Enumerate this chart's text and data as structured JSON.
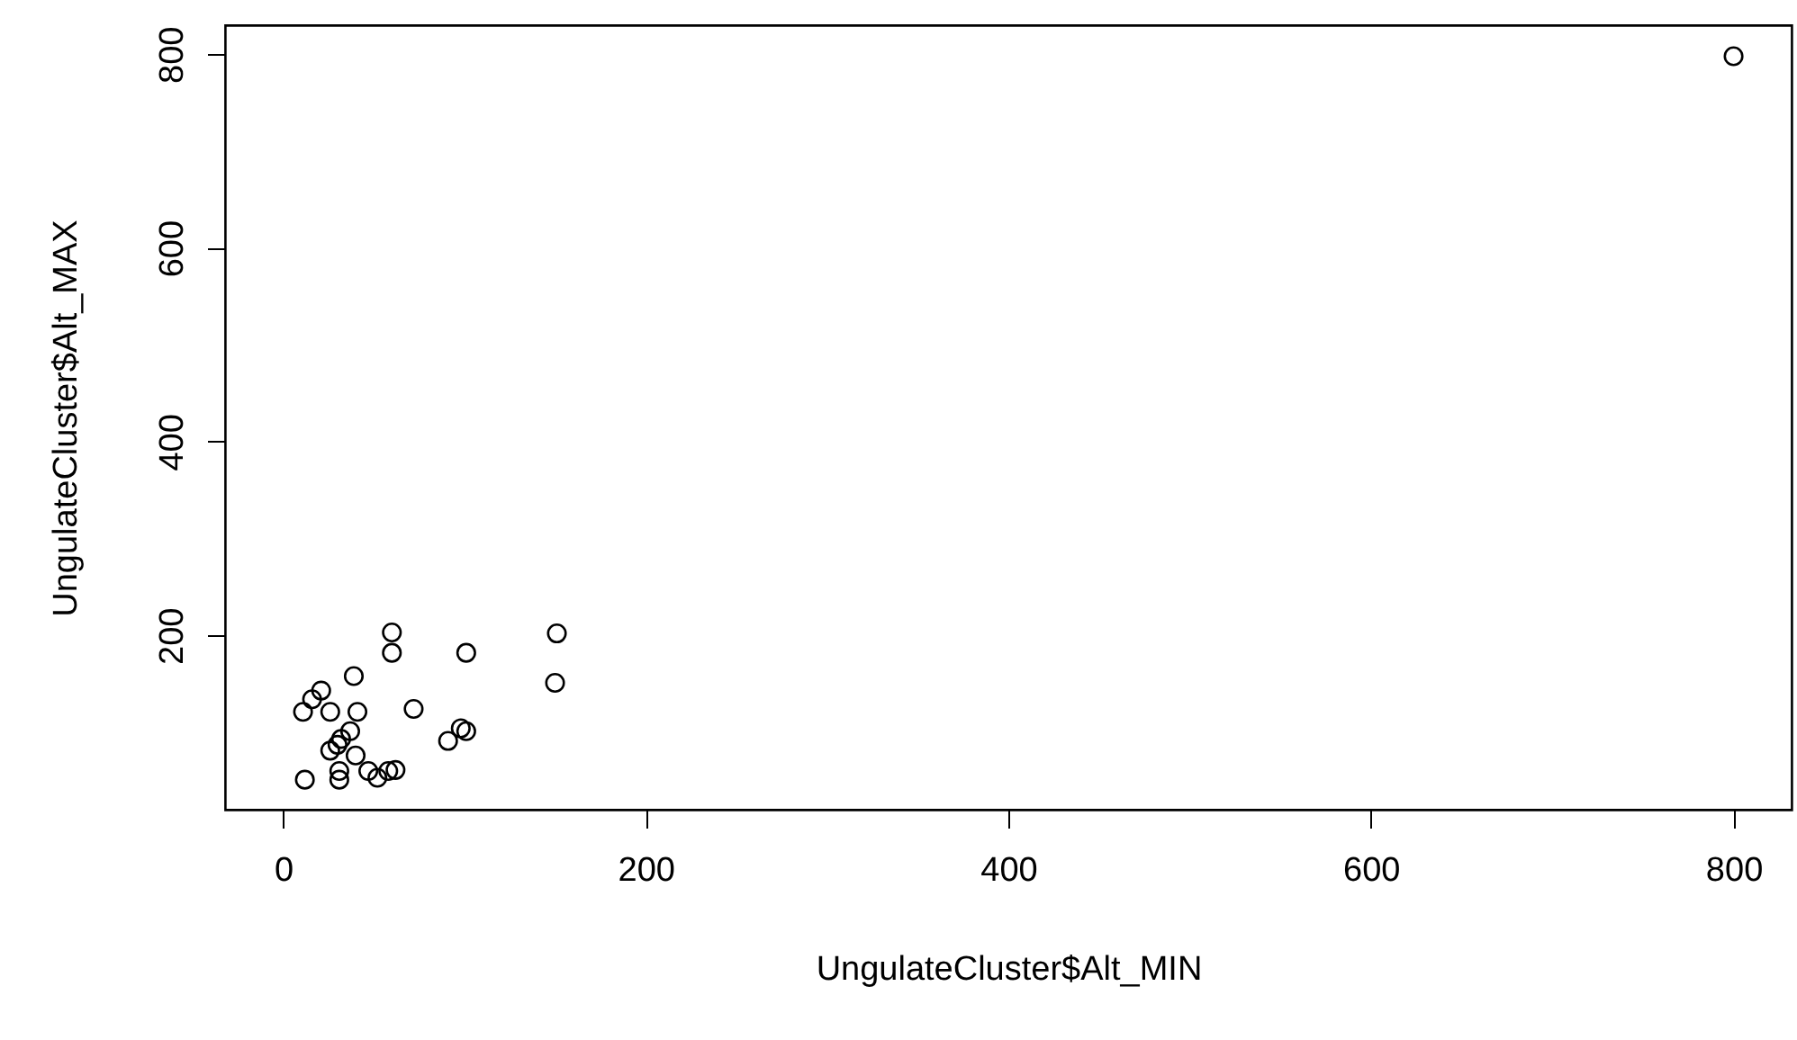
{
  "chart_data": {
    "type": "scatter",
    "xlabel": "UngulateCluster$Alt_MIN",
    "ylabel": "UngulateCluster$Alt_MAX",
    "marker": "circle",
    "grid": false,
    "xlim": [
      -32,
      832
    ],
    "ylim": [
      20,
      830
    ],
    "xticks": [
      0,
      200,
      400,
      600,
      800
    ],
    "yticks": [
      200,
      400,
      600,
      800
    ],
    "series": [
      {
        "color": "#000000",
        "x": [
          60,
          60,
          101,
          151,
          150,
          39,
          21,
          16,
          11,
          26,
          41,
          72,
          37,
          32,
          30,
          26,
          40,
          91,
          98,
          101,
          31,
          31,
          12,
          47,
          52,
          58,
          62,
          800
        ],
        "values": [
          203,
          182,
          182,
          202,
          151,
          158,
          143,
          134,
          121,
          121,
          121,
          124,
          101,
          93,
          87,
          81,
          76,
          91,
          104,
          101,
          60,
          51,
          51,
          60,
          53,
          60,
          61,
          798
        ]
      }
    ]
  }
}
